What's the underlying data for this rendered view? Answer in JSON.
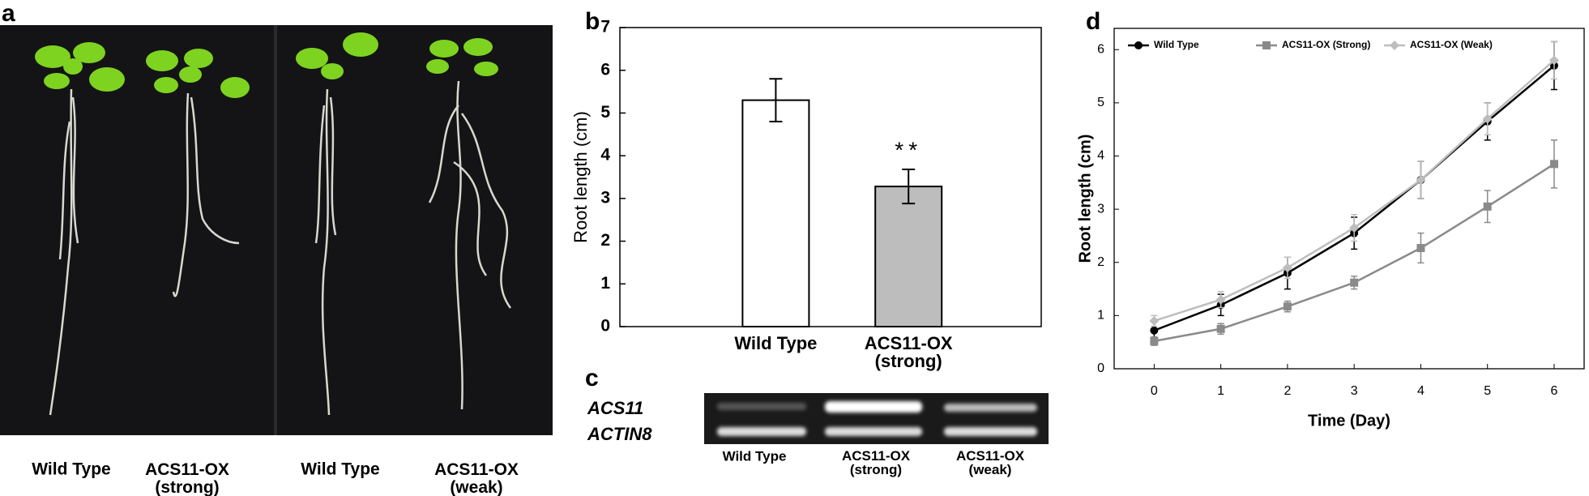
{
  "panel_labels": [
    "a",
    "b",
    "c",
    "d"
  ],
  "photo_labels": [
    "Wild Type",
    "ACS11-OX\n(strong)",
    "Wild Type",
    "ACS11-OX\n(weak)"
  ],
  "gel": {
    "genes": [
      "ACS11",
      "ACTIN8"
    ],
    "lanes": [
      "Wild Type",
      "ACS11-OX\n(strong)",
      "ACS11-OX\n(weak)"
    ]
  },
  "chart_data": [
    {
      "type": "bar",
      "y_label": "Root length (cm)",
      "categories": [
        "Wild Type",
        "ACS11-OX\n(strong)"
      ],
      "values": [
        5.3,
        3.28
      ],
      "errors": [
        0.5,
        0.4
      ],
      "colors": [
        "#ffffff",
        "#bdbdbd"
      ],
      "annotation": "**",
      "ylim": [
        0,
        7
      ],
      "yticks": [
        0,
        1,
        2,
        3,
        4,
        5,
        6,
        7
      ]
    },
    {
      "type": "line",
      "x_label": "Time (Day)",
      "y_label": "Root length (cm)",
      "x": [
        0,
        1,
        2,
        3,
        4,
        5,
        6
      ],
      "series": [
        {
          "name": "Wild Type",
          "color": "#000000",
          "marker": "circle",
          "values": [
            0.72,
            1.2,
            1.8,
            2.55,
            3.55,
            4.65,
            5.7
          ],
          "errors": [
            0.2,
            0.2,
            0.3,
            0.3,
            0.35,
            0.35,
            0.45
          ]
        },
        {
          "name": "ACS11-OX (Strong)",
          "color": "#8a8a8a",
          "marker": "square",
          "values": [
            0.52,
            0.75,
            1.17,
            1.62,
            2.27,
            3.05,
            3.85
          ],
          "errors": [
            0.08,
            0.1,
            0.1,
            0.12,
            0.28,
            0.3,
            0.45
          ]
        },
        {
          "name": "ACS11-OX (Weak)",
          "color": "#bdbdbd",
          "marker": "diamond",
          "values": [
            0.9,
            1.3,
            1.9,
            2.65,
            3.55,
            4.7,
            5.8
          ],
          "errors": [
            0.1,
            0.15,
            0.2,
            0.25,
            0.35,
            0.3,
            0.35
          ]
        }
      ],
      "xlim": [
        -0.6,
        6.45
      ],
      "ylim": [
        0,
        6.4
      ],
      "xticks": [
        0,
        1,
        2,
        3,
        4,
        5,
        6
      ],
      "yticks": [
        0,
        1,
        2,
        3,
        4,
        5,
        6
      ]
    }
  ]
}
